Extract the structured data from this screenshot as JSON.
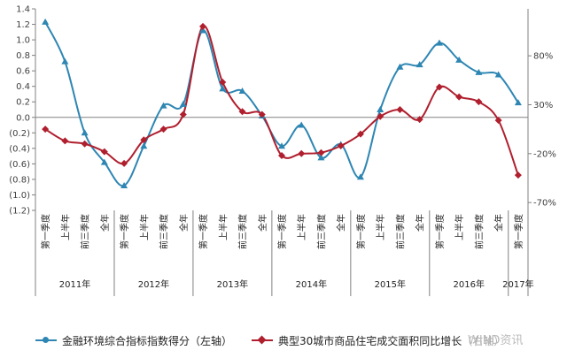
{
  "chart_data": {
    "type": "line",
    "title": "",
    "left_axis": {
      "ticks": [
        "1.4",
        "1.2",
        "1.0",
        "0.8",
        "0.6",
        "0.4",
        "0.2",
        "0.0",
        "(0.2)",
        "(0.4)",
        "(0.6)",
        "(0.8)",
        "(1.0)",
        "(1.2)"
      ],
      "ylim": [
        -1.2,
        1.4
      ]
    },
    "right_axis": {
      "ticks": [
        "80%",
        "30%",
        "-20%",
        "-70%"
      ],
      "ylim": [
        -0.78,
        1.28
      ]
    },
    "categories": [
      "第一季度",
      "上半年",
      "前三季度",
      "全年",
      "第一季度",
      "上半年",
      "前三季度",
      "全年",
      "第一季度",
      "上半年",
      "前三季度",
      "全年",
      "第一季度",
      "上半年",
      "前三季度",
      "全年",
      "第一季度",
      "上半年",
      "前三季度",
      "全年",
      "第一季度",
      "上半年",
      "前三季度",
      "全年",
      "第一季度"
    ],
    "year_groups": [
      {
        "label": "2011年",
        "count": 4
      },
      {
        "label": "2012年",
        "count": 4
      },
      {
        "label": "2013年",
        "count": 4
      },
      {
        "label": "2014年",
        "count": 4
      },
      {
        "label": "2015年",
        "count": 4
      },
      {
        "label": "2016年",
        "count": 4
      },
      {
        "label": "2017年",
        "count": 1
      }
    ],
    "series": [
      {
        "name": "金融环境综合指标指数得分（左轴）",
        "axis": "left",
        "color": "#2e86b3",
        "marker": "triangle",
        "values": [
          1.23,
          0.72,
          -0.2,
          -0.58,
          -0.88,
          -0.37,
          0.15,
          0.17,
          1.12,
          0.37,
          0.34,
          0.02,
          -0.37,
          -0.1,
          -0.52,
          -0.35,
          -0.77,
          0.1,
          0.65,
          0.68,
          0.96,
          0.74,
          0.58,
          0.55,
          0.19
        ]
      },
      {
        "name": "典型30城市商品住宅成交面积同比增长（右轴）",
        "axis": "right",
        "color": "#b01f2e",
        "marker": "diamond",
        "values": [
          0.05,
          -0.07,
          -0.1,
          -0.18,
          -0.3,
          -0.06,
          0.05,
          0.2,
          1.1,
          0.53,
          0.23,
          0.2,
          -0.22,
          -0.2,
          -0.19,
          -0.12,
          0.0,
          0.18,
          0.25,
          0.15,
          0.48,
          0.38,
          0.33,
          0.14,
          -0.42
        ]
      }
    ],
    "grid": false,
    "legend_position": "bottom"
  },
  "watermark": "WIND资讯",
  "colors": {
    "series1": "#2e86b3",
    "series2": "#b01f2e",
    "axis": "#808080"
  }
}
